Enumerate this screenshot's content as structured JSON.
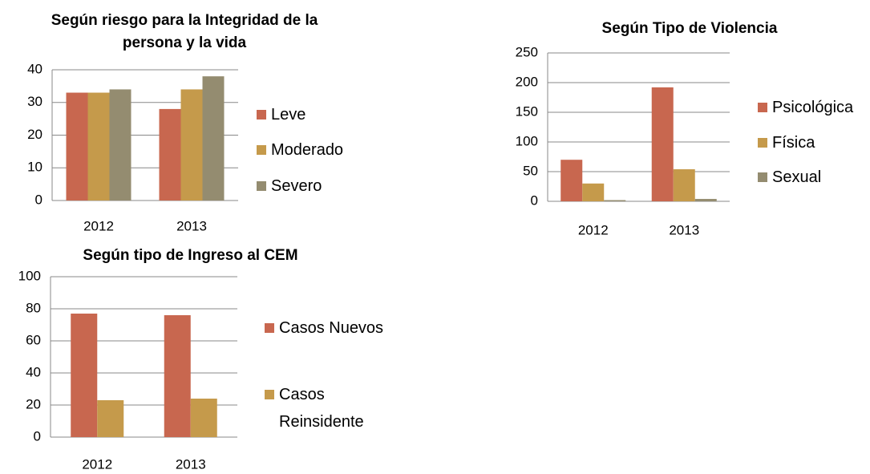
{
  "chart_data": [
    {
      "type": "bar",
      "title": "Según riesgo para la Integridad de la persona y la vida",
      "categories": [
        "2012",
        "2013"
      ],
      "series": [
        {
          "name": "Leve",
          "color": "#c8674f",
          "values": [
            33,
            28
          ]
        },
        {
          "name": "Moderado",
          "color": "#c59a4b",
          "values": [
            33,
            34
          ]
        },
        {
          "name": "Severo",
          "color": "#948c70",
          "values": [
            34,
            38
          ]
        }
      ],
      "ylim": [
        0,
        40
      ],
      "yticks": [
        0,
        10,
        20,
        30,
        40
      ],
      "grid": true,
      "legend": "right"
    },
    {
      "type": "bar",
      "title": "Según Tipo de Violencia",
      "categories": [
        "2012",
        "2013"
      ],
      "series": [
        {
          "name": "Psicológica",
          "color": "#c8674f",
          "values": [
            70,
            192
          ]
        },
        {
          "name": "Física",
          "color": "#c59a4b",
          "values": [
            30,
            54
          ]
        },
        {
          "name": "Sexual",
          "color": "#948c70",
          "values": [
            2,
            4
          ]
        }
      ],
      "ylim": [
        0,
        250
      ],
      "yticks": [
        0,
        50,
        100,
        150,
        200,
        250
      ],
      "grid": true,
      "legend": "right"
    },
    {
      "type": "bar",
      "title": "Según tipo de Ingreso al CEM",
      "categories": [
        "2012",
        "2013"
      ],
      "series": [
        {
          "name": "Casos Nuevos",
          "color": "#c8674f",
          "values": [
            77,
            76
          ]
        },
        {
          "name": "Casos Reinsidente",
          "color": "#c59a4b",
          "values": [
            23,
            24
          ]
        }
      ],
      "ylim": [
        0,
        100
      ],
      "yticks": [
        0,
        20,
        40,
        60,
        80,
        100
      ],
      "grid": true,
      "legend": "right"
    }
  ]
}
